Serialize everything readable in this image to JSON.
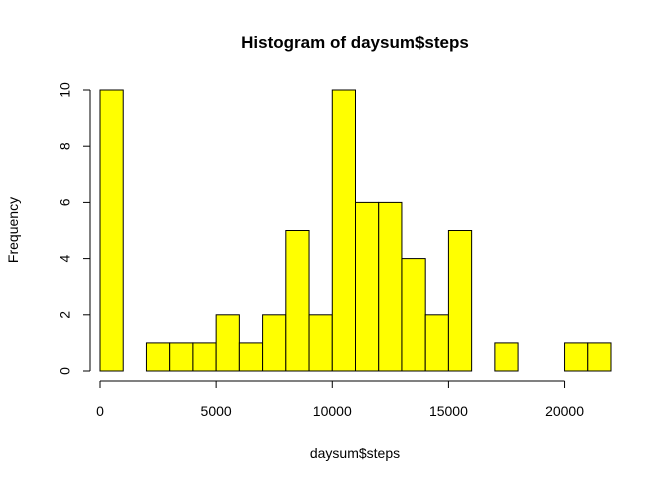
{
  "chart_data": {
    "type": "bar",
    "title": "Histogram of daysum$steps",
    "xlabel": "daysum$steps",
    "ylabel": "Frequency",
    "bar_color": "#ffff00",
    "border_color": "#000000",
    "bin_edges": [
      0,
      1000,
      2000,
      3000,
      4000,
      5000,
      6000,
      7000,
      8000,
      9000,
      10000,
      11000,
      12000,
      13000,
      14000,
      15000,
      16000,
      17000,
      18000,
      19000,
      20000,
      21000,
      22000
    ],
    "values": [
      10,
      0,
      1,
      1,
      1,
      2,
      1,
      2,
      5,
      2,
      10,
      6,
      6,
      4,
      2,
      5,
      0,
      1,
      0,
      0,
      1,
      1
    ],
    "xlim": [
      0,
      22000
    ],
    "ylim": [
      0,
      10
    ],
    "x_ticks": [
      0,
      5000,
      10000,
      15000,
      20000
    ],
    "x_tick_labels": [
      "0",
      "5000",
      "10000",
      "15000",
      "20000"
    ],
    "y_ticks": [
      0,
      2,
      4,
      6,
      8,
      10
    ],
    "y_tick_labels": [
      "0",
      "2",
      "4",
      "6",
      "8",
      "10"
    ],
    "grid": false
  }
}
